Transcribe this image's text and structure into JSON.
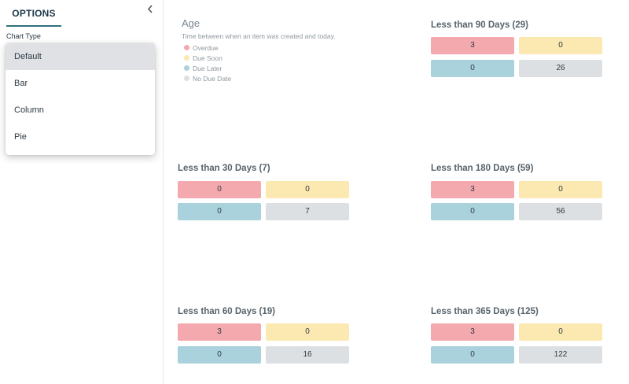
{
  "sidebar": {
    "tab_label": "OPTIONS",
    "collapse_icon": "chevron-left-icon",
    "chart_type_label": "Chart Type",
    "chart_type_options": [
      "Default",
      "Bar",
      "Column",
      "Pie"
    ],
    "selected_option": "Default"
  },
  "legend": {
    "title": "Age",
    "description": "Time between when an item was created and today.",
    "items": [
      {
        "label": "Overdue",
        "color": "#f4a9ae"
      },
      {
        "label": "Due Soon",
        "color": "#fce8b1"
      },
      {
        "label": "Due Later",
        "color": "#a9d2dc"
      },
      {
        "label": "No Due Date",
        "color": "#dde0e2"
      }
    ]
  },
  "cards": [
    {
      "title": "Less than 90 Days (29)",
      "overdue": "3",
      "due_soon": "0",
      "due_later": "0",
      "no_due_date": "26"
    },
    {
      "title": "Less than 30 Days (7)",
      "overdue": "0",
      "due_soon": "0",
      "due_later": "0",
      "no_due_date": "7"
    },
    {
      "title": "Less than 180 Days (59)",
      "overdue": "3",
      "due_soon": "0",
      "due_later": "0",
      "no_due_date": "56"
    },
    {
      "title": "Less than 60 Days (19)",
      "overdue": "3",
      "due_soon": "0",
      "due_later": "0",
      "no_due_date": "16"
    },
    {
      "title": "Less than 365 Days (125)",
      "overdue": "3",
      "due_soon": "0",
      "due_later": "0",
      "no_due_date": "122"
    }
  ]
}
